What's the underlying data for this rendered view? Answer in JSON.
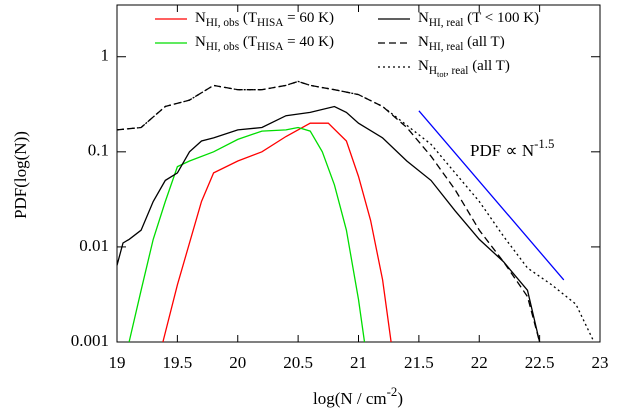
{
  "chart_data": {
    "type": "line",
    "ylog": true,
    "xlabel": "log(N / cm^{-2})",
    "ylabel": "PDF(log(N))",
    "xlim": [
      19,
      23
    ],
    "xticks": [
      19,
      19.5,
      20,
      20.5,
      21,
      21.5,
      22,
      22.5,
      23
    ],
    "ylim": [
      0.001,
      3.5
    ],
    "yticks": [
      0.001,
      0.01,
      0.1,
      1
    ],
    "series": [
      {
        "name": "N_{HI, obs} (T_{HISA} = 60 K)",
        "color": "#ff0000",
        "dash": "solid",
        "x": [
          19.38,
          19.5,
          19.7,
          19.8,
          20.0,
          20.2,
          20.4,
          20.6,
          20.75,
          20.9,
          21.0,
          21.1,
          21.2,
          21.27
        ],
        "values": [
          0.001,
          0.004,
          0.03,
          0.06,
          0.08,
          0.1,
          0.145,
          0.2,
          0.2,
          0.13,
          0.055,
          0.019,
          0.0045,
          0.001
        ]
      },
      {
        "name": "N_{HI, obs} (T_{HISA} = 40 K)",
        "color": "#00dd00",
        "dash": "solid",
        "x": [
          19.1,
          19.2,
          19.3,
          19.4,
          19.5,
          19.6,
          19.8,
          20.0,
          20.2,
          20.4,
          20.5,
          20.6,
          20.7,
          20.8,
          20.9,
          21.0,
          21.05
        ],
        "values": [
          0.001,
          0.0035,
          0.012,
          0.03,
          0.07,
          0.08,
          0.1,
          0.135,
          0.165,
          0.17,
          0.18,
          0.165,
          0.1,
          0.045,
          0.015,
          0.0028,
          0.001
        ]
      },
      {
        "name": "N_{HI, real} (T < 100 K)",
        "color": "#000000",
        "dash": "solid",
        "x": [
          19.0,
          19.05,
          19.1,
          19.2,
          19.3,
          19.4,
          19.5,
          19.6,
          19.7,
          19.8,
          20.0,
          20.2,
          20.4,
          20.6,
          20.8,
          20.9,
          21.0,
          21.2,
          21.4,
          21.6,
          21.8,
          22.0,
          22.2,
          22.4,
          22.5
        ],
        "values": [
          0.0064,
          0.011,
          0.012,
          0.015,
          0.03,
          0.05,
          0.06,
          0.1,
          0.13,
          0.14,
          0.17,
          0.18,
          0.24,
          0.26,
          0.3,
          0.26,
          0.2,
          0.14,
          0.08,
          0.05,
          0.024,
          0.012,
          0.007,
          0.0035,
          0.001
        ]
      },
      {
        "name": "N_{HI, real} (all T)",
        "color": "#000000",
        "dash": "dashed",
        "x": [
          19.0,
          19.2,
          19.4,
          19.6,
          19.8,
          20.0,
          20.2,
          20.4,
          20.5,
          20.6,
          20.8,
          21.0,
          21.2,
          21.4,
          21.6,
          21.8,
          22.0,
          22.2,
          22.4,
          22.5
        ],
        "values": [
          0.17,
          0.18,
          0.3,
          0.35,
          0.5,
          0.45,
          0.45,
          0.5,
          0.55,
          0.5,
          0.45,
          0.4,
          0.3,
          0.18,
          0.09,
          0.04,
          0.015,
          0.007,
          0.003,
          0.001
        ]
      },
      {
        "name": "N_{H_{tot}, real} (all T)",
        "color": "#000000",
        "dash": "dotted",
        "x": [
          19.0,
          19.2,
          19.4,
          19.6,
          19.8,
          20.0,
          20.2,
          20.4,
          20.5,
          20.6,
          20.8,
          21.0,
          21.2,
          21.4,
          21.6,
          21.8,
          22.0,
          22.2,
          22.4,
          22.6,
          22.8,
          22.95
        ],
        "values": [
          0.17,
          0.18,
          0.3,
          0.35,
          0.5,
          0.45,
          0.45,
          0.5,
          0.55,
          0.5,
          0.45,
          0.4,
          0.3,
          0.19,
          0.12,
          0.06,
          0.03,
          0.013,
          0.006,
          0.004,
          0.0025,
          0.001
        ]
      }
    ],
    "reference_line": {
      "label": "PDF ∝ N^{-1.5}",
      "color": "#0000ff",
      "x": [
        21.5,
        22.7
      ],
      "values": [
        0.27,
        0.0045
      ]
    }
  }
}
